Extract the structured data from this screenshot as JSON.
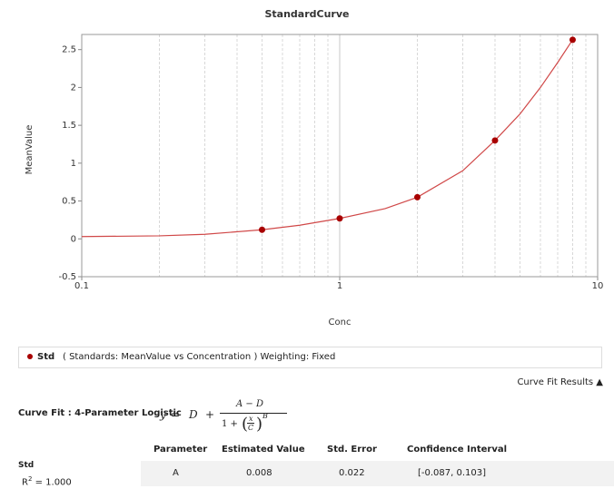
{
  "chart_data": {
    "type": "scatter",
    "title": "StandardCurve",
    "x_label": "Conc",
    "y_label": "MeanValue",
    "xscale": "log",
    "xlim": [
      0.1,
      10
    ],
    "xticks": [
      0.1,
      1,
      10
    ],
    "ylim": [
      -0.5,
      2.7
    ],
    "yticks": [
      -0.5,
      0,
      0.5,
      1,
      1.5,
      2,
      2.5
    ],
    "grid": "x",
    "minor_grid": true,
    "series": [
      {
        "name": "Std",
        "color": "#a80000",
        "x": [
          0.5,
          1,
          2,
          4,
          8
        ],
        "values": [
          0.12,
          0.27,
          0.55,
          1.3,
          2.63
        ]
      }
    ],
    "fit_line": {
      "color": "#d04848",
      "x": [
        0.1,
        0.2,
        0.3,
        0.5,
        0.7,
        1,
        1.5,
        2,
        3,
        4,
        5,
        6,
        7,
        8
      ],
      "values": [
        0.03,
        0.04,
        0.06,
        0.12,
        0.18,
        0.27,
        0.4,
        0.55,
        0.9,
        1.3,
        1.65,
        2.0,
        2.33,
        2.63
      ]
    },
    "legend_description": "( Standards: MeanValue vs Concentration ) Weighting: Fixed"
  },
  "results": {
    "toggle": "Curve Fit Results ▲",
    "curve_fit": "Curve Fit : 4-Parameter Logistic",
    "equation": {
      "y": "y",
      "eq": "=",
      "D": "D",
      "plus": "+",
      "numerator": "A − D",
      "one_plus": "1 +",
      "x": "x",
      "C": "C",
      "B": "B"
    },
    "table": {
      "header": [
        "Parameter",
        "Estimated Value",
        "Std. Error",
        "Confidence Interval"
      ],
      "group": "Std",
      "r2": {
        "label": "R",
        "sup": "2",
        "value": " = 1.000"
      },
      "rows": [
        [
          "A",
          "0.008",
          "0.022",
          "[-0.087, 0.103]"
        ]
      ]
    }
  }
}
